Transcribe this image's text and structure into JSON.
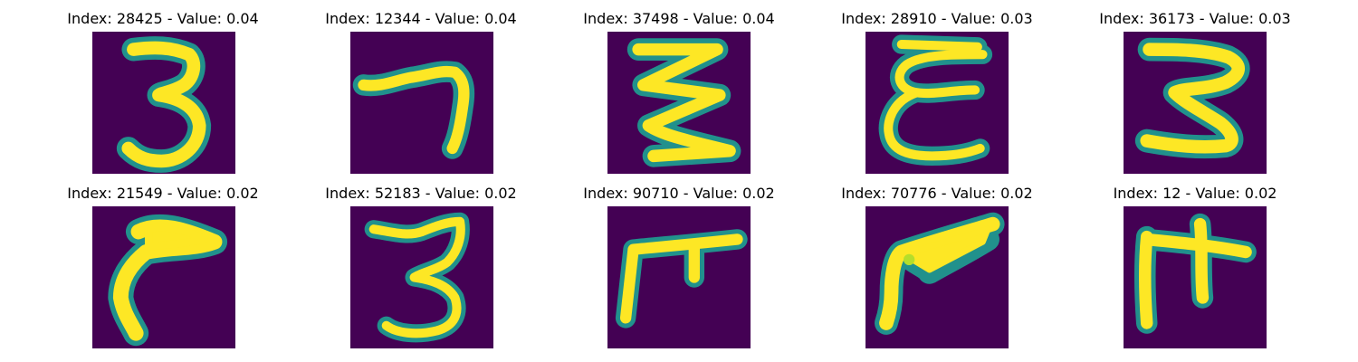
{
  "colors": {
    "background": "#440154",
    "stroke_core": "#fde725",
    "stroke_mid": "#b5de2b",
    "stroke_edge": "#21918c"
  },
  "panels": [
    {
      "title": "Index: 28425 - Value: 0.04",
      "image": "handwritten-3-digit"
    },
    {
      "title": "Index: 12344 - Value: 0.04",
      "image": "handwritten-7-digit"
    },
    {
      "title": "Index: 37498 - Value: 0.04",
      "image": "handwritten-zigzag-3"
    },
    {
      "title": "Index: 28910 - Value: 0.03",
      "image": "handwritten-epsilon-3"
    },
    {
      "title": "Index: 36173 - Value: 0.03",
      "image": "handwritten-3-digit"
    },
    {
      "title": "Index: 21549 - Value: 0.02",
      "image": "handwritten-hook-stroke"
    },
    {
      "title": "Index: 52183 - Value: 0.02",
      "image": "handwritten-3-digit"
    },
    {
      "title": "Index: 90710 - Value: 0.02",
      "image": "handwritten-gate-shape"
    },
    {
      "title": "Index: 70776 - Value: 0.02",
      "image": "handwritten-v-shape"
    },
    {
      "title": "Index: 12 - Value: 0.02",
      "image": "handwritten-gate-shape"
    }
  ]
}
